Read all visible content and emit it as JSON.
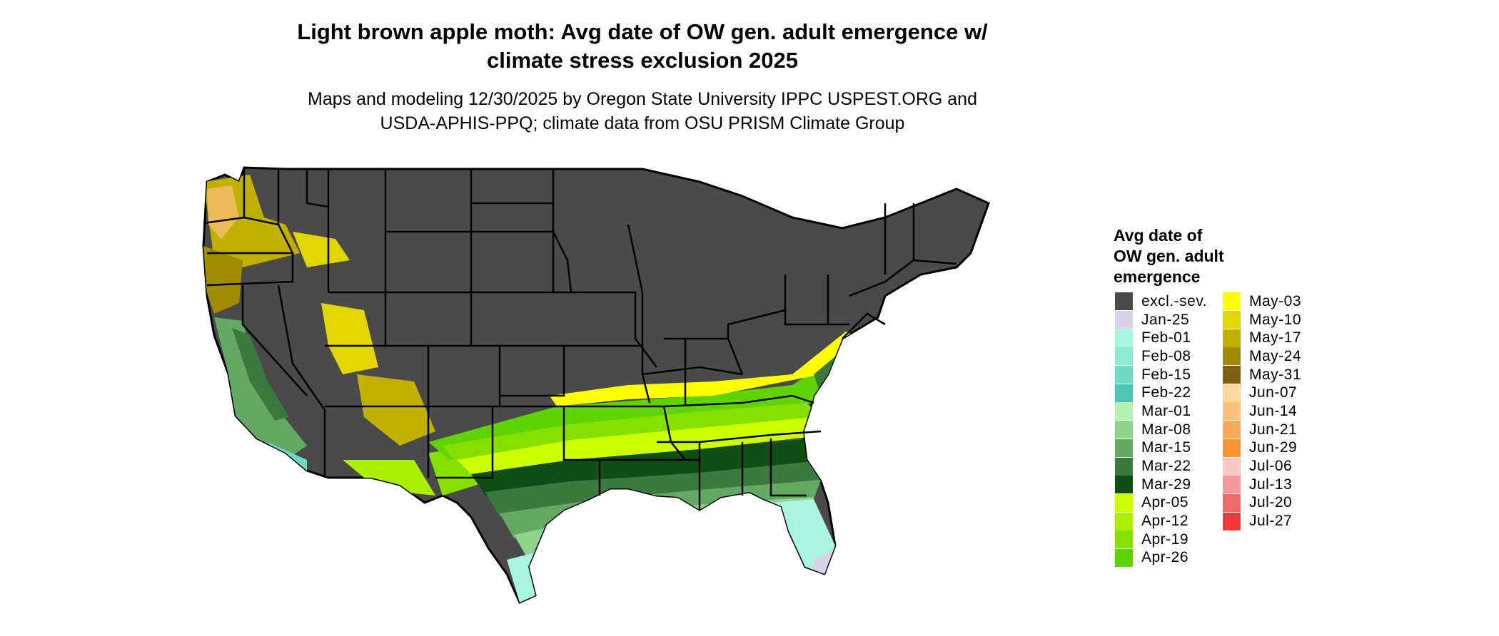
{
  "title": {
    "line1": "Light brown apple moth: Avg date of OW gen. adult emergence w/",
    "line2": "climate stress exclusion 2025"
  },
  "subtitle": {
    "line1": "Maps and modeling 12/30/2025 by Oregon State University IPPC USPEST.ORG and",
    "line2": "USDA-APHIS-PPQ; climate data from OSU PRISM Climate Group"
  },
  "legend": {
    "title_line1": "Avg date of",
    "title_line2": "OW gen. adult",
    "title_line3": "emergence",
    "column1": [
      {
        "label": "excl.-sev.",
        "color": "#4a4a4a"
      },
      {
        "label": "Jan-25",
        "color": "#d9d3ea"
      },
      {
        "label": "Feb-01",
        "color": "#aaf5e0"
      },
      {
        "label": "Feb-08",
        "color": "#8fe8d2"
      },
      {
        "label": "Feb-15",
        "color": "#6fd9c4"
      },
      {
        "label": "Feb-22",
        "color": "#4fc6b5"
      },
      {
        "label": "Mar-01",
        "color": "#b4f3b4"
      },
      {
        "label": "Mar-08",
        "color": "#8ed28e"
      },
      {
        "label": "Mar-15",
        "color": "#63a863"
      },
      {
        "label": "Mar-22",
        "color": "#3a7a3e"
      },
      {
        "label": "Mar-29",
        "color": "#0f4e14"
      },
      {
        "label": "Apr-05",
        "color": "#ccff00"
      },
      {
        "label": "Apr-12",
        "color": "#a8ef00"
      },
      {
        "label": "Apr-19",
        "color": "#85e000"
      },
      {
        "label": "Apr-26",
        "color": "#5fd400"
      }
    ],
    "column2": [
      {
        "label": "May-03",
        "color": "#ffff00"
      },
      {
        "label": "May-10",
        "color": "#e2d600"
      },
      {
        "label": "May-17",
        "color": "#c0b000"
      },
      {
        "label": "May-24",
        "color": "#9f8c00"
      },
      {
        "label": "May-31",
        "color": "#7d6010"
      },
      {
        "label": "Jun-07",
        "color": "#fcd79c"
      },
      {
        "label": "Jun-14",
        "color": "#fcc07a"
      },
      {
        "label": "Jun-21",
        "color": "#fca95a"
      },
      {
        "label": "Jun-29",
        "color": "#fc9630"
      },
      {
        "label": "Jul-06",
        "color": "#f8c8c8"
      },
      {
        "label": "Jul-13",
        "color": "#f59a9a"
      },
      {
        "label": "Jul-20",
        "color": "#f06a6a"
      },
      {
        "label": "Jul-27",
        "color": "#f03a3a"
      }
    ]
  },
  "map": {
    "excluded_color": "#4a4a4a",
    "boundary_color": "#000000"
  }
}
